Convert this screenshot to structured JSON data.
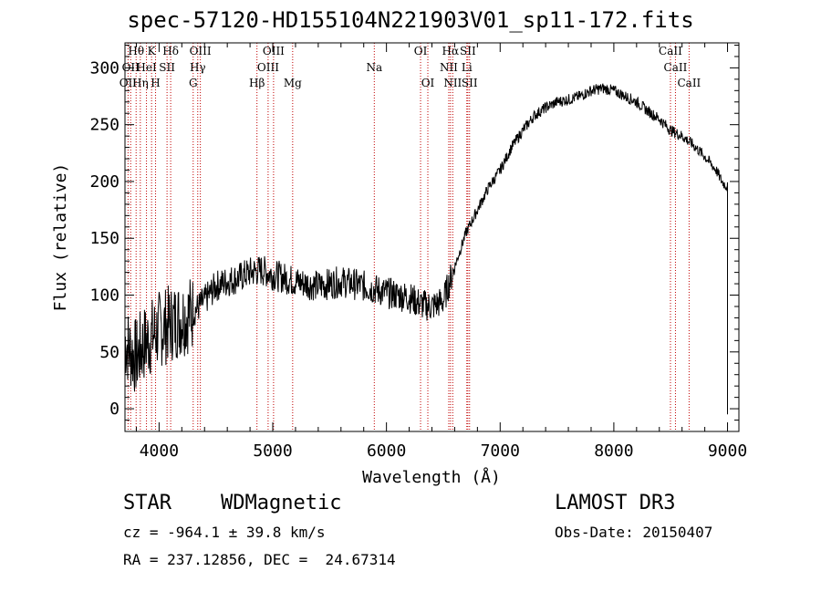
{
  "chart_data": {
    "type": "line",
    "title": "spec-57120-HD155104N221903V01_sp11-172.fits",
    "xlabel": "Wavelength (Å)",
    "ylabel": "Flux (relative)",
    "xlim": [
      3700,
      9100
    ],
    "ylim": [
      -20,
      322
    ],
    "xticks": [
      4000,
      5000,
      6000,
      7000,
      8000,
      9000
    ],
    "yticks": [
      0,
      50,
      100,
      150,
      200,
      250,
      300
    ],
    "xtick_labels": [
      "4000",
      "5000",
      "6000",
      "7000",
      "8000",
      "9000"
    ],
    "ytick_labels": [
      "0",
      "50",
      "100",
      "150",
      "200",
      "250",
      "300"
    ],
    "series": [
      {
        "name": "flux",
        "x": [
          3700,
          3750,
          3800,
          3850,
          3900,
          3950,
          4000,
          4100,
          4200,
          4300,
          4400,
          4500,
          4600,
          4700,
          4800,
          4900,
          5000,
          5100,
          5200,
          5300,
          5400,
          5500,
          5600,
          5700,
          5800,
          5900,
          6000,
          6100,
          6200,
          6300,
          6400,
          6500,
          6600,
          6700,
          6800,
          6900,
          7000,
          7100,
          7200,
          7300,
          7400,
          7500,
          7600,
          7700,
          7800,
          7900,
          8000,
          8100,
          8200,
          8300,
          8400,
          8500,
          8600,
          8700,
          8800,
          8900,
          8950,
          9000
        ],
        "y": [
          60,
          50,
          45,
          55,
          60,
          65,
          70,
          75,
          80,
          85,
          95,
          108,
          112,
          115,
          120,
          122,
          118,
          115,
          112,
          110,
          108,
          110,
          112,
          110,
          108,
          105,
          102,
          100,
          98,
          92,
          90,
          95,
          125,
          155,
          175,
          195,
          210,
          230,
          245,
          258,
          265,
          270,
          272,
          275,
          280,
          282,
          280,
          275,
          270,
          262,
          255,
          245,
          240,
          232,
          222,
          210,
          200,
          195
        ]
      }
    ],
    "lines": [
      {
        "wave": 3727,
        "label": "OII",
        "row": 2
      },
      {
        "wave": 3750,
        "label": "OII",
        "row": 1
      },
      {
        "wave": 3798,
        "label": "Hθ",
        "row": 0
      },
      {
        "wave": 3835,
        "label": "Hη",
        "row": 2
      },
      {
        "wave": 3889,
        "label": "HeI",
        "row": 1
      },
      {
        "wave": 3934,
        "label": "K",
        "row": 0
      },
      {
        "wave": 3969,
        "label": "H",
        "row": 2
      },
      {
        "wave": 4070,
        "label": "SII",
        "row": 1
      },
      {
        "wave": 4102,
        "label": "Hδ",
        "row": 0
      },
      {
        "wave": 4300,
        "label": "G",
        "row": 2
      },
      {
        "wave": 4340,
        "label": "Hγ",
        "row": 1
      },
      {
        "wave": 4363,
        "label": "OIII",
        "row": 0
      },
      {
        "wave": 4861,
        "label": "Hβ",
        "row": 2
      },
      {
        "wave": 4959,
        "label": "OIII",
        "row": 1
      },
      {
        "wave": 5007,
        "label": "OIII",
        "row": 0
      },
      {
        "wave": 5175,
        "label": "Mg",
        "row": 2
      },
      {
        "wave": 5893,
        "label": "Na",
        "row": 1
      },
      {
        "wave": 6300,
        "label": "OI",
        "row": 0
      },
      {
        "wave": 6364,
        "label": "OI",
        "row": 2
      },
      {
        "wave": 6548,
        "label": "NII",
        "row": 1
      },
      {
        "wave": 6563,
        "label": "Hα",
        "row": 0
      },
      {
        "wave": 6583,
        "label": "NII",
        "row": 2
      },
      {
        "wave": 6707,
        "label": "Li",
        "row": 1
      },
      {
        "wave": 6716,
        "label": "SII",
        "row": 0
      },
      {
        "wave": 6731,
        "label": "SII",
        "row": 2
      },
      {
        "wave": 8498,
        "label": "CaII",
        "row": 0
      },
      {
        "wave": 8542,
        "label": "CaII",
        "row": 1
      },
      {
        "wave": 8662,
        "label": "CaII",
        "row": 2
      }
    ]
  },
  "info": {
    "object_class": "STAR",
    "subclass": "WDMagnetic",
    "survey": "LAMOST DR3",
    "redshift": "cz = -964.1 ± 39.8 km/s",
    "obs_date": "Obs-Date: 20150407",
    "coords": "RA = 237.12856, DEC =  24.67314"
  },
  "colors": {
    "axis": "#000000",
    "line_marker": "#c00000",
    "spectrum": "#000000"
  }
}
